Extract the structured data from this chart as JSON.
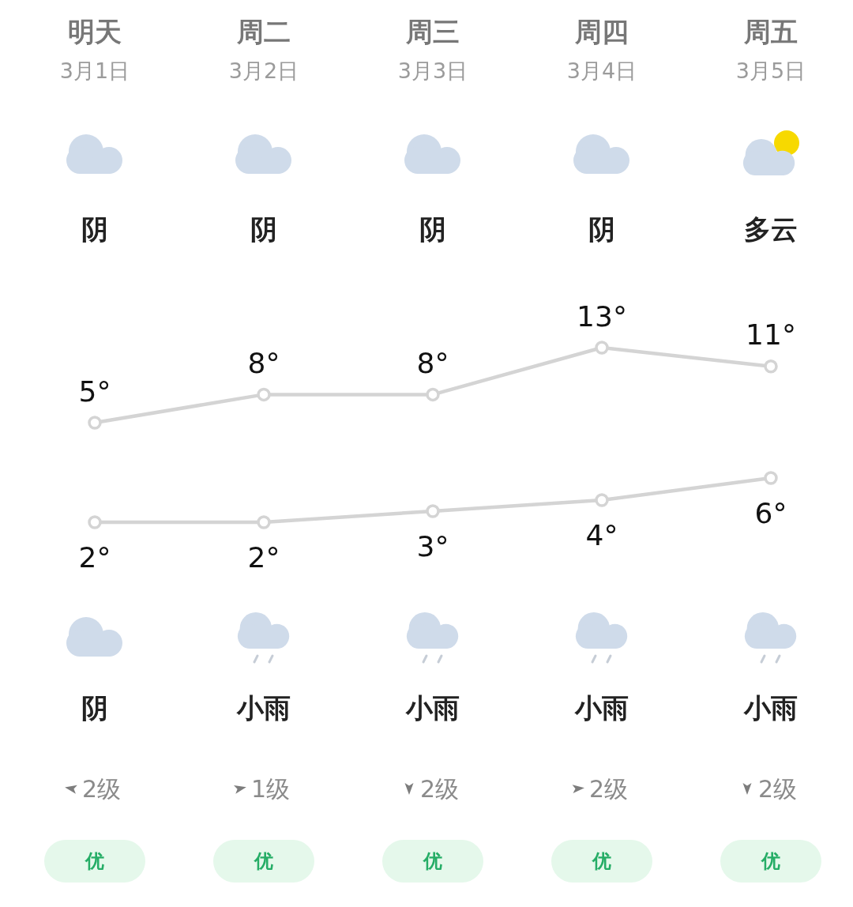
{
  "chart_data": [
    {
      "type": "line",
      "categories": [
        "明天",
        "周二",
        "周三",
        "周四",
        "周五"
      ],
      "series": [
        {
          "color": "#d4d4d4",
          "values": [
            5,
            8,
            8,
            13,
            11
          ],
          "value_labels": [
            "5°",
            "8°",
            "8°",
            "13°",
            "11°"
          ]
        }
      ],
      "marker": "circle",
      "annotations": [
        "3月1日",
        "3月2日",
        "3月3日",
        "3月4日",
        "3月5日",
        "阴",
        "阴",
        "阴",
        "阴",
        "多云"
      ]
    },
    {
      "type": "line",
      "categories": [
        null,
        null,
        null,
        null,
        null
      ],
      "series": [
        {
          "color": "#d4d4d4",
          "values": [
            2,
            2,
            3,
            4,
            6
          ],
          "value_labels": [
            "2°",
            "2°",
            "3°",
            "4°",
            "6°"
          ]
        }
      ],
      "marker": "circle",
      "annotations": [
        "阴",
        "小雨",
        "小雨",
        "小雨",
        "小雨",
        "2级",
        "1级",
        "2级",
        "2级",
        "2级",
        "优",
        "优",
        "优",
        "优",
        "优"
      ]
    }
  ]
}
